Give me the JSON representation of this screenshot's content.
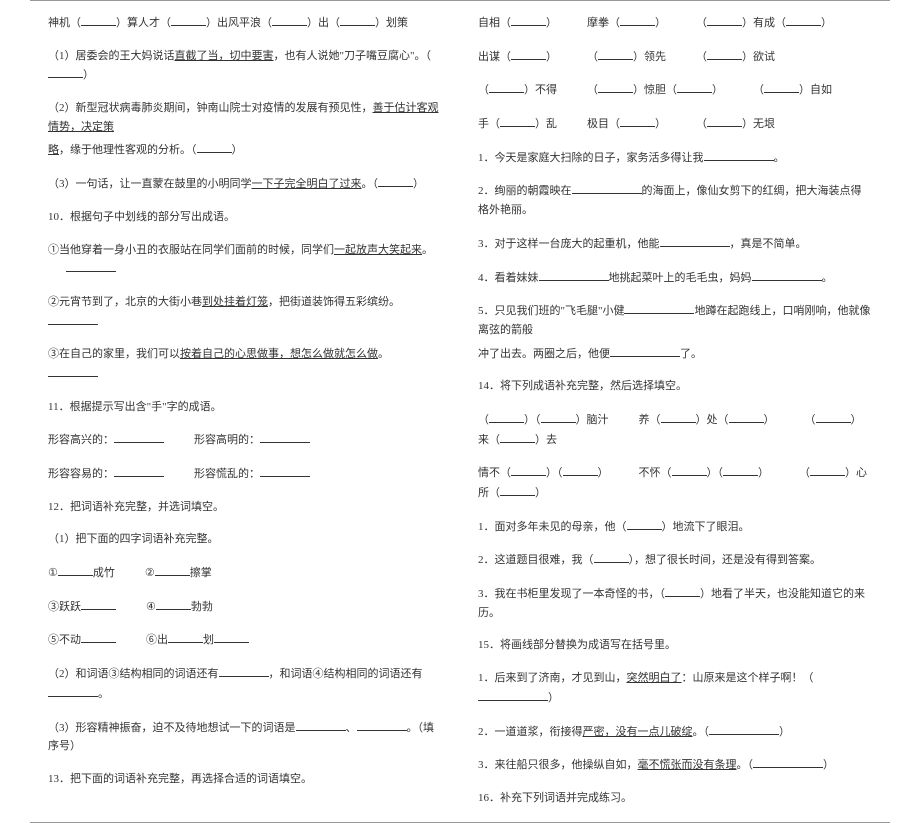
{
  "left": {
    "l1": {
      "a": "神机（",
      "b": "）算人才（",
      "c": "）出风平浪（",
      "d": "）出（",
      "e": "）划策"
    },
    "l2": "（1）居委会的王大妈说话",
    "l2u": "直截了当，切中要害",
    "l2b": "，也有人说她\"刀子嘴豆腐心\"。（",
    "l2c": "）",
    "l3a": "（2）新型冠状病毒肺炎期间，钟南山院士对疫情的发展有预见性，",
    "l3u": "善于估计客观情势，决定策",
    "l3b": "略",
    "l3c": "，缘于他理性客观的分析。（",
    "l3d": "）",
    "l4a": "（3）一句话，让一直蒙在鼓里的小明同学",
    "l4u": "一下子完全明白了过来",
    "l4b": "。（",
    "l4c": "）",
    "q10": "10．根据句子中划线的部分写出成语。",
    "q10a": "①当他穿着一身小丑的衣服站在同学们面前的时候，同学们",
    "q10au": "一起放声大笑起来",
    "q10ab": "。",
    "q10b": "②元宵节到了，北京的大街小巷",
    "q10bu": "到处挂着灯笼",
    "q10bb": "，把街道装饰得五彩缤纷。",
    "q10c": "③在自己的家里，我们可以",
    "q10cu": "按着自己的心思做事，想怎么做就怎么做",
    "q10cb": "。",
    "q11": "11．根据提示写出含\"手\"字的成语。",
    "q11a": "形容高兴的：",
    "q11b": "形容高明的：",
    "q11c": "形容容易的：",
    "q11d": "形容慌乱的：",
    "q12": "12．把词语补充完整，并选词填空。",
    "q12s1": "（1）把下面的四字词语补充完整。",
    "q12a": "①",
    "q12a2": "成竹",
    "q12b": "②",
    "q12b2": "擦掌",
    "q12c": "③跃跃",
    "q12d": "④",
    "q12d2": "勃勃",
    "q12e": "⑤不动",
    "q12f": "⑥出",
    "q12f2": "划",
    "q12s2a": "（2）和词语③结构相同的词语还有",
    "q12s2b": "，和词语④结构相同的词语还有",
    "q12s2c": "。",
    "q12s3a": "（3）形容精神振奋，迫不及待地想试一下的词语是",
    "q12s3b": "、",
    "q12s3c": "。（填序号）",
    "q13": "13．把下面的词语补充完整，再选择合适的词语填空。"
  },
  "right": {
    "r1a": "自相（",
    "r1b": "）",
    "r1c": "摩拳（",
    "r1d": "）",
    "r1e": "（",
    "r1f": "）有成（",
    "r1g": "）",
    "r2a": "出谋（",
    "r2b": "）",
    "r2c": "（",
    "r2d": "）领先",
    "r2e": "（",
    "r2f": "）欲试",
    "r3a": "（",
    "r3b": "）不得",
    "r3c": "（",
    "r3d": "）惊胆（",
    "r3e": "）",
    "r3f": "（",
    "r3g": "）自如",
    "r4a": "手（",
    "r4b": "）乱",
    "r4c": "极目（",
    "r4d": "）",
    "r4e": "（",
    "r4f": "）无垠",
    "r5a": "1．今天是家庭大扫除的日子，家务活多得让我",
    "r5b": "。",
    "r6a": "2．绚丽的朝霞映在",
    "r6b": "的海面上，像仙女剪下的红绸，把大海装点得格外艳丽。",
    "r7a": "3．对于这样一台庞大的起重机，他能",
    "r7b": "，真是不简单。",
    "r8a": "4．看着妹妹",
    "r8b": "地挑起菜叶上的毛毛虫，妈妈",
    "r8c": "。",
    "r9a": "5．只见我们班的\"飞毛腿\"小健",
    "r9b": "地蹲在起跑线上，口哨刚响，他就像离弦的箭般",
    "r9c": "冲了出去。两圈之后，他便",
    "r9d": "了。",
    "q14": "14．将下列成语补充完整，然后选择填空。",
    "q14a": "（",
    "q14b": "）（",
    "q14c": "）脑汁",
    "q14d": "养（",
    "q14e": "）处（",
    "q14f": "）",
    "q14g": "（",
    "q14h": "）来（",
    "q14i": "）去",
    "q14j": "情不（",
    "q14k": "）（",
    "q14l": "）",
    "q14m": "不怀（",
    "q14n": "）（",
    "q14o": "）",
    "q14p": "（",
    "q14q": "）心所（",
    "q14r": "）",
    "q14s1a": "1．面对多年未见的母亲，他（",
    "q14s1b": "）地流下了眼泪。",
    "q14s2a": "2．这道题目很难，我（",
    "q14s2b": "），想了很长时间，还是没有得到答案。",
    "q14s3a": "3．我在书柜里发现了一本奇怪的书，（",
    "q14s3b": "）地看了半天，也没能知道它的来历。",
    "q15": "15．将画线部分替换为成语写在括号里。",
    "q15a": "1．后来到了济南，才见到山，",
    "q15au": "突然明白了",
    "q15ab": "：山原来是这个样子啊！（",
    "q15ac": "）",
    "q15b": "2．一道道浆，衔接得",
    "q15bu": "严密，没有一点儿破绽",
    "q15bb": "。（",
    "q15bc": "）",
    "q15c": "3．来往船只很多，他操纵自如，",
    "q15cu": "毫不慌张而没有条理",
    "q15cb": "。（",
    "q15cc": "）",
    "q16": "16．补充下列词语并完成练习。"
  }
}
